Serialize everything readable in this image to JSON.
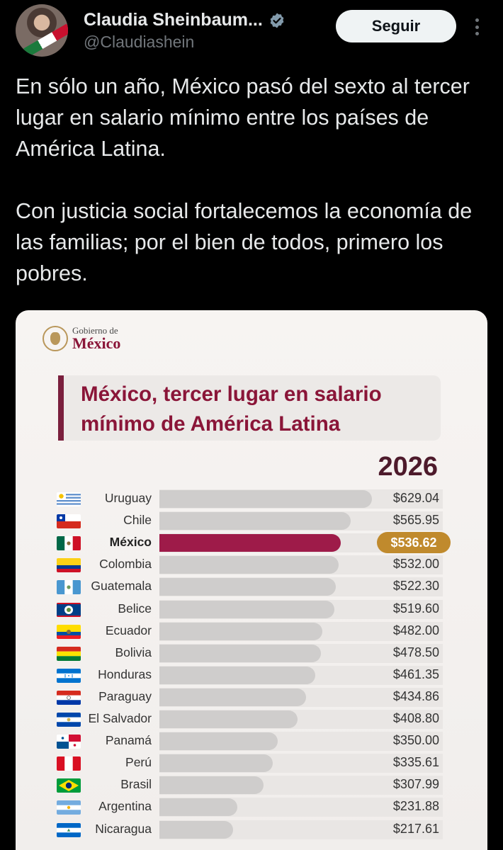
{
  "post": {
    "display_name": "Claudia Sheinbaum...",
    "handle": "@Claudiashein",
    "follow_label": "Seguir",
    "paragraphs": [
      "En sólo un año, México pasó del sexto al tercer lugar en salario mínimo entre los países de América Latina.",
      "Con justicia social fortalecemos la economía de las familias; por el bien de todos, primero los pobres."
    ]
  },
  "card": {
    "logo_small": "Gobierno de",
    "logo_big": "México",
    "title_line1": "México, tercer lugar en salario",
    "title_line2": "mínimo de América Latina",
    "year": "2026",
    "highlight_color": "#9e1b49",
    "badge_color": "#c08a2d"
  },
  "chart_data": {
    "type": "bar",
    "orientation": "horizontal",
    "title": "México, tercer lugar en salario mínimo de América Latina",
    "subtitle": "2026",
    "categories": [
      "Uruguay",
      "Chile",
      "México",
      "Colombia",
      "Guatemala",
      "Belice",
      "Ecuador",
      "Bolivia",
      "Honduras",
      "Paraguay",
      "El Salvador",
      "Panamá",
      "Perú",
      "Brasil",
      "Argentina",
      "Nicaragua"
    ],
    "values": [
      629.04,
      565.95,
      536.62,
      532.0,
      522.3,
      519.6,
      482.0,
      478.5,
      461.35,
      434.86,
      408.8,
      350.0,
      335.61,
      307.99,
      231.88,
      217.61
    ],
    "value_labels": [
      "$629.04",
      "$565.95",
      "$536.62",
      "$532.00",
      "$522.30",
      "$519.60",
      "$482.00",
      "$478.50",
      "$461.35",
      "$434.86",
      "$408.80",
      "$350.00",
      "$335.61",
      "$307.99",
      "$231.88",
      "$217.61"
    ],
    "highlight": "México"
  }
}
